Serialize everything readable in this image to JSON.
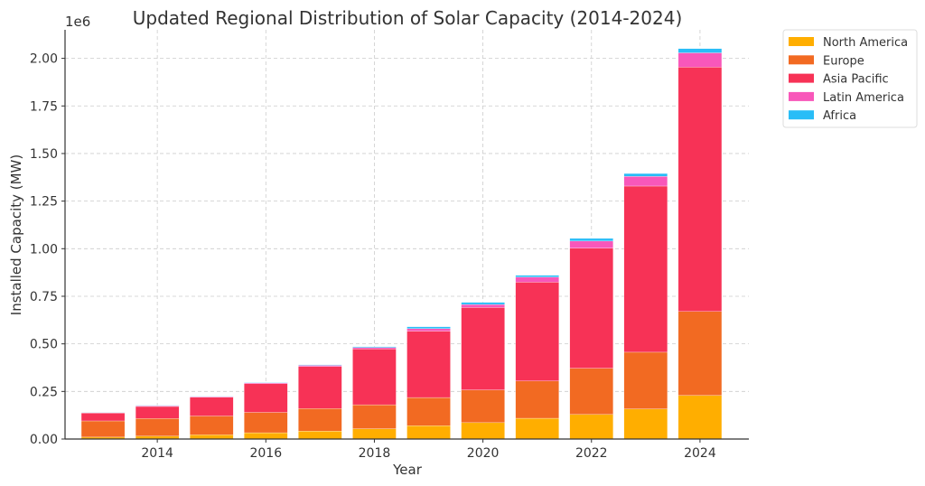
{
  "chart_data": {
    "type": "bar",
    "stacked": true,
    "title": "Updated Regional Distribution of Solar Capacity (2014-2024)",
    "xlabel": "Year",
    "ylabel": "Installed Capacity (MW)",
    "y_offset_label": "1e6",
    "ylim": [
      0,
      2150000
    ],
    "xlim": [
      2012.3,
      2024.9
    ],
    "grid": true,
    "legend_position": "outside-top-right",
    "x": [
      2013,
      2014,
      2015,
      2016,
      2017,
      2018,
      2019,
      2020,
      2021,
      2022,
      2023,
      2024
    ],
    "x_ticks": [
      2014,
      2016,
      2018,
      2020,
      2022,
      2024
    ],
    "x_tick_labels": [
      "2014",
      "2016",
      "2018",
      "2020",
      "2022",
      "2024"
    ],
    "y_ticks": [
      0,
      250000,
      500000,
      750000,
      1000000,
      1250000,
      1500000,
      1750000,
      2000000
    ],
    "y_tick_labels": [
      "0.00",
      "0.25",
      "0.50",
      "0.75",
      "1.00",
      "1.25",
      "1.50",
      "1.75",
      "2.00"
    ],
    "series": [
      {
        "name": "North America",
        "color": "#ffae00",
        "values": [
          10000,
          15000,
          22000,
          33000,
          42000,
          54000,
          70000,
          86000,
          109000,
          129000,
          158000,
          229000
        ]
      },
      {
        "name": "Europe",
        "color": "#f26a22",
        "values": [
          85000,
          93000,
          99000,
          107000,
          118000,
          126000,
          148000,
          172000,
          196000,
          243000,
          298000,
          441000
        ]
      },
      {
        "name": "Asia Pacific",
        "color": "#f73256",
        "values": [
          42000,
          63000,
          98000,
          151000,
          221000,
          293000,
          349000,
          433000,
          519000,
          631000,
          873000,
          1284000
        ]
      },
      {
        "name": "Latin America",
        "color": "#f857ba",
        "values": [
          2000,
          4000,
          4000,
          4000,
          6000,
          8000,
          13000,
          16000,
          27000,
          37000,
          51000,
          75000
        ]
      },
      {
        "name": "Africa",
        "color": "#29bdf7",
        "values": [
          1000,
          2000,
          2000,
          2000,
          3000,
          4000,
          10000,
          11000,
          9000,
          14000,
          15000,
          22000
        ]
      }
    ]
  }
}
